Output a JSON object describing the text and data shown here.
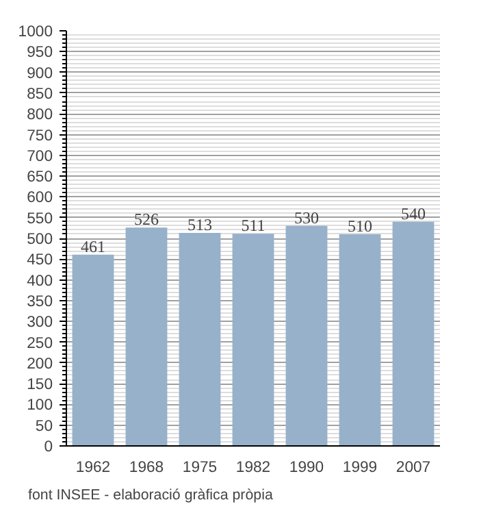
{
  "chart_data": {
    "type": "bar",
    "categories": [
      "1962",
      "1968",
      "1975",
      "1982",
      "1990",
      "1999",
      "2007"
    ],
    "values": [
      461,
      526,
      513,
      511,
      530,
      510,
      540
    ],
    "color": "#97b1cb",
    "ylim": [
      0,
      1000
    ],
    "yticks": [
      0,
      50,
      100,
      150,
      200,
      250,
      300,
      350,
      400,
      450,
      500,
      550,
      600,
      650,
      700,
      750,
      800,
      850,
      900,
      950,
      1000
    ],
    "grid": "y",
    "data_labels": true,
    "annotations": [
      "font INSEE - elaboració gràfica pròpia"
    ]
  }
}
